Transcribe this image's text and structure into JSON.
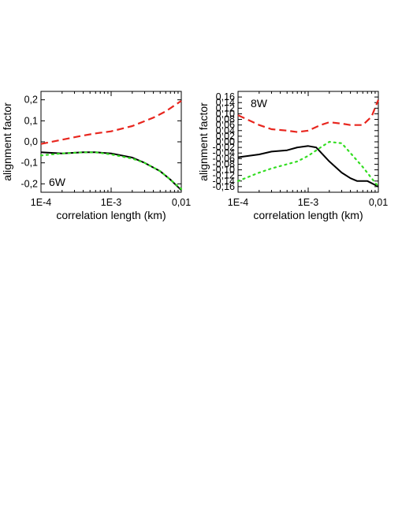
{
  "chart_data": [
    {
      "type": "line",
      "panel_label": "6W",
      "xlabel": "correlation length (km)",
      "ylabel": "alignment factor",
      "x_scale": "log",
      "xlim": [
        0.0001,
        0.01
      ],
      "ylim": [
        -0.24,
        0.24
      ],
      "x_ticks": [
        0.0001,
        0.001,
        0.01
      ],
      "x_tick_labels": [
        "1E-4",
        "1E-3",
        "0,01"
      ],
      "y_ticks": [
        -0.2,
        -0.1,
        0.0,
        0.1,
        0.2
      ],
      "y_tick_labels": [
        "-0,2",
        "-0,1",
        "0,0",
        "0,1",
        "0,2"
      ],
      "grid": false,
      "series": [
        {
          "color": "#e8261e",
          "style": "dashed",
          "points": [
            [
              0.0001,
              -0.01
            ],
            [
              0.0002,
              0.01
            ],
            [
              0.0004,
              0.03
            ],
            [
              0.0006,
              0.04
            ],
            [
              0.001,
              0.05
            ],
            [
              0.002,
              0.075
            ],
            [
              0.004,
              0.115
            ],
            [
              0.006,
              0.145
            ],
            [
              0.01,
              0.195
            ]
          ]
        },
        {
          "color": "#000000",
          "style": "solid",
          "points": [
            [
              0.0001,
              -0.05
            ],
            [
              0.0002,
              -0.055
            ],
            [
              0.0004,
              -0.05
            ],
            [
              0.0006,
              -0.05
            ],
            [
              0.001,
              -0.055
            ],
            [
              0.002,
              -0.075
            ],
            [
              0.003,
              -0.1
            ],
            [
              0.005,
              -0.14
            ],
            [
              0.007,
              -0.18
            ],
            [
              0.01,
              -0.23
            ]
          ]
        },
        {
          "color": "#33dd22",
          "style": "dotted",
          "points": [
            [
              0.0001,
              -0.065
            ],
            [
              0.0002,
              -0.055
            ],
            [
              0.0004,
              -0.05
            ],
            [
              0.0006,
              -0.05
            ],
            [
              0.001,
              -0.06
            ],
            [
              0.002,
              -0.08
            ],
            [
              0.003,
              -0.1
            ],
            [
              0.005,
              -0.14
            ],
            [
              0.007,
              -0.18
            ],
            [
              0.01,
              -0.225
            ]
          ]
        }
      ]
    },
    {
      "type": "line",
      "panel_label": "8W",
      "xlabel": "correlation length (km)",
      "ylabel": "alignment factor",
      "x_scale": "log",
      "xlim": [
        0.0001,
        0.01
      ],
      "ylim": [
        -0.18,
        0.18
      ],
      "x_ticks": [
        0.0001,
        0.001,
        0.01
      ],
      "x_tick_labels": [
        "1E-4",
        "1E-3",
        "0,01"
      ],
      "y_ticks": [
        -0.16,
        -0.14,
        -0.12,
        -0.1,
        -0.08,
        -0.06,
        -0.04,
        -0.02,
        0.0,
        0.02,
        0.04,
        0.06,
        0.08,
        0.1,
        0.12,
        0.14,
        0.16
      ],
      "y_tick_labels": [
        "-0,16",
        "-0,14",
        "-0,12",
        "-0,10",
        "-0,08",
        "-0,06",
        "-0,04",
        "-0,02",
        "0,00",
        "0,02",
        "0,04",
        "0,06",
        "0,08",
        "0,10",
        "0,12",
        "0,14",
        "0,16"
      ],
      "grid": false,
      "series": [
        {
          "color": "#e8261e",
          "style": "dashed",
          "points": [
            [
              0.0001,
              0.095
            ],
            [
              0.0002,
              0.06
            ],
            [
              0.0003,
              0.045
            ],
            [
              0.0005,
              0.04
            ],
            [
              0.0007,
              0.035
            ],
            [
              0.001,
              0.04
            ],
            [
              0.0015,
              0.06
            ],
            [
              0.002,
              0.07
            ],
            [
              0.003,
              0.065
            ],
            [
              0.004,
              0.06
            ],
            [
              0.006,
              0.06
            ],
            [
              0.008,
              0.09
            ],
            [
              0.01,
              0.15
            ]
          ]
        },
        {
          "color": "#000000",
          "style": "solid",
          "points": [
            [
              0.0001,
              -0.055
            ],
            [
              0.0002,
              -0.045
            ],
            [
              0.0003,
              -0.035
            ],
            [
              0.0005,
              -0.03
            ],
            [
              0.0007,
              -0.02
            ],
            [
              0.001,
              -0.015
            ],
            [
              0.0013,
              -0.02
            ],
            [
              0.002,
              -0.07
            ],
            [
              0.003,
              -0.11
            ],
            [
              0.004,
              -0.13
            ],
            [
              0.005,
              -0.14
            ],
            [
              0.007,
              -0.14
            ],
            [
              0.01,
              -0.16
            ]
          ]
        },
        {
          "color": "#33dd22",
          "style": "dotted",
          "points": [
            [
              0.0001,
              -0.14
            ],
            [
              0.0002,
              -0.11
            ],
            [
              0.0003,
              -0.095
            ],
            [
              0.0005,
              -0.08
            ],
            [
              0.0007,
              -0.07
            ],
            [
              0.001,
              -0.05
            ],
            [
              0.0015,
              -0.02
            ],
            [
              0.002,
              0.0
            ],
            [
              0.003,
              -0.005
            ],
            [
              0.004,
              -0.04
            ],
            [
              0.006,
              -0.09
            ],
            [
              0.008,
              -0.13
            ],
            [
              0.01,
              -0.16
            ]
          ]
        }
      ]
    }
  ]
}
